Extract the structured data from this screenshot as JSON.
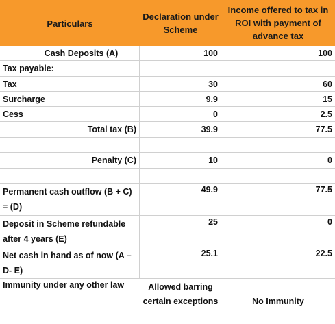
{
  "header": {
    "col1": "Particulars",
    "col2": "Declaration under Scheme",
    "col3": "Income offered to tax in ROI with payment of advance tax"
  },
  "rows": {
    "cash_deposits": {
      "label": "Cash Deposits (A)",
      "v2": "100",
      "v3": "100"
    },
    "tax_payable": {
      "label": "Tax payable:",
      "v2": "",
      "v3": ""
    },
    "tax": {
      "label": "Tax",
      "v2": "30",
      "v3": "60"
    },
    "surcharge": {
      "label": "Surcharge",
      "v2": "9.9",
      "v3": "15"
    },
    "cess": {
      "label": "Cess",
      "v2": "0",
      "v3": "2.5"
    },
    "total_tax": {
      "label": "Total tax (B)",
      "v2": "39.9",
      "v3": "77.5"
    },
    "penalty": {
      "label": "Penalty (C)",
      "v2": "10",
      "v3": "0"
    },
    "permanent_outflow": {
      "label": "Permanent cash outflow (B + C) = (D)",
      "v2": "49.9",
      "v3": "77.5"
    },
    "deposit_scheme": {
      "label": "Deposit in Scheme refundable after 4 years (E)",
      "v2": "25",
      "v3": "0"
    },
    "net_cash": {
      "label": "Net cash in hand as of now (A – D- E)",
      "v2": "25.1",
      "v3": "22.5"
    },
    "immunity": {
      "label": "Immunity under any other law",
      "v2": "Allowed barring certain exceptions",
      "v3": "No Immunity"
    }
  },
  "colors": {
    "header_bg": "#f7992b",
    "grid": "#d0d0d0"
  }
}
